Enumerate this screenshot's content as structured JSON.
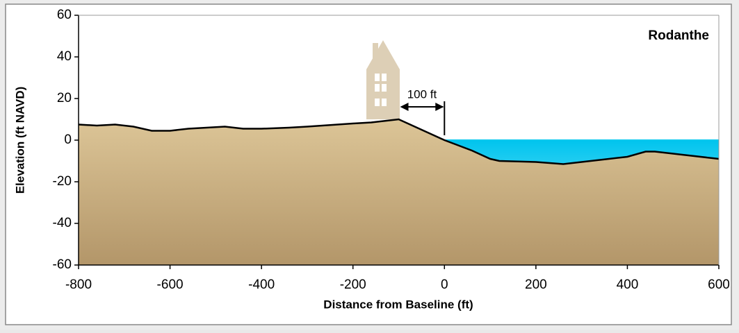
{
  "chart_data": {
    "type": "profile",
    "annotations": {
      "place": "Rodanthe",
      "setback": {
        "text": "100 ft",
        "from": -100,
        "to": 0
      }
    },
    "xlabel": "Distance from Baseline (ft)",
    "ylabel": "Elevation (ft NAVD)",
    "x": [
      -800,
      -760,
      -720,
      -680,
      -640,
      -600,
      -560,
      -520,
      -480,
      -440,
      -400,
      -340,
      -300,
      -200,
      -160,
      -120,
      -100,
      -60,
      0,
      60,
      100,
      120,
      200,
      260,
      300,
      340,
      400,
      440,
      460,
      520,
      600
    ],
    "values": [
      7.5,
      7,
      7.5,
      6.5,
      4.5,
      4.5,
      5.5,
      6,
      6.5,
      5.5,
      5.5,
      6,
      6.5,
      8,
      8.5,
      9.5,
      10,
      6,
      0,
      -5,
      -9,
      -10,
      -10.5,
      -11.5,
      -10.5,
      -9.5,
      -8,
      -5.5,
      -5.5,
      -7,
      -9
    ],
    "ground_color": "#d6bd8f",
    "line_color": "#000000",
    "water": {
      "from": 0,
      "to": 600,
      "level": 0,
      "color": "#00c8ee"
    },
    "xlim": [
      -800,
      600
    ],
    "xticks": [
      -800,
      -600,
      -400,
      -200,
      0,
      200,
      400,
      600
    ],
    "ylim": [
      -60,
      60
    ],
    "yticks": [
      -60,
      -40,
      -20,
      0,
      20,
      40,
      60
    ]
  }
}
